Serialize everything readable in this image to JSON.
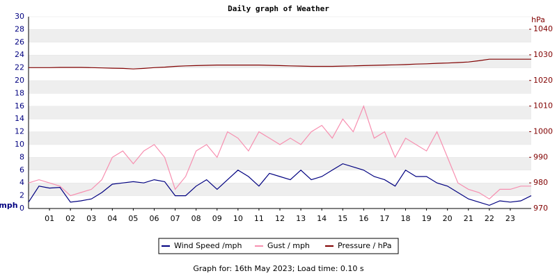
{
  "chart_data": {
    "type": "line",
    "title": "Daily graph of Weather",
    "ylabel": "mph",
    "y2label": "hPa",
    "x": [
      0,
      0.5,
      1,
      1.5,
      2,
      2.5,
      3,
      3.5,
      4,
      4.5,
      5,
      5.5,
      6,
      6.5,
      7,
      7.5,
      8,
      8.5,
      9,
      9.5,
      10,
      10.5,
      11,
      11.5,
      12,
      12.5,
      13,
      13.5,
      14,
      14.5,
      15,
      15.5,
      16,
      16.5,
      17,
      17.5,
      18,
      18.5,
      19,
      19.5,
      20,
      20.5,
      21,
      21.5,
      22,
      22.5,
      23,
      23.5,
      24
    ],
    "xlim": [
      0,
      24
    ],
    "xticks": [
      {
        "value": 1,
        "label": "01"
      },
      {
        "value": 2,
        "label": "02"
      },
      {
        "value": 3,
        "label": "03"
      },
      {
        "value": 4,
        "label": "04"
      },
      {
        "value": 5,
        "label": "05"
      },
      {
        "value": 6,
        "label": "06"
      },
      {
        "value": 7,
        "label": "07"
      },
      {
        "value": 8,
        "label": "08"
      },
      {
        "value": 9,
        "label": "09"
      },
      {
        "value": 10,
        "label": "10"
      },
      {
        "value": 11,
        "label": "11"
      },
      {
        "value": 12,
        "label": "12"
      },
      {
        "value": 13,
        "label": "13"
      },
      {
        "value": 14,
        "label": "14"
      },
      {
        "value": 15,
        "label": "15"
      },
      {
        "value": 16,
        "label": "16"
      },
      {
        "value": 17,
        "label": "17"
      },
      {
        "value": 18,
        "label": "18"
      },
      {
        "value": 19,
        "label": "19"
      },
      {
        "value": 20,
        "label": "20"
      },
      {
        "value": 21,
        "label": "21"
      },
      {
        "value": 22,
        "label": "22"
      },
      {
        "value": 23,
        "label": "23"
      }
    ],
    "ylim": [
      0,
      30
    ],
    "yticks": [
      0,
      2,
      4,
      6,
      8,
      10,
      12,
      14,
      16,
      18,
      20,
      22,
      24,
      26,
      28,
      30
    ],
    "y2lim": [
      970,
      1044.9
    ],
    "y2ticks": [
      970,
      980,
      990,
      1000,
      1010,
      1020,
      1030,
      1040
    ],
    "grid": true,
    "series": [
      {
        "name": "Wind Speed /mph",
        "color": "#000080",
        "values": [
          1,
          3.5,
          3.2,
          3.3,
          1.0,
          1.2,
          1.5,
          2.5,
          3.8,
          4.0,
          4.2,
          4.0,
          4.5,
          4.2,
          2.0,
          2.0,
          3.5,
          4.5,
          3.0,
          4.5,
          6.0,
          5.0,
          3.5,
          5.5,
          5.0,
          4.5,
          6.0,
          4.5,
          5.0,
          6.0,
          7.0,
          6.5,
          6.0,
          5.0,
          4.5,
          3.5,
          6.0,
          5.0,
          5.0,
          4.0,
          3.5,
          2.5,
          1.5,
          1.0,
          0.5,
          1.2,
          1.0,
          1.2,
          2.0
        ]
      },
      {
        "name": "Gust / mph",
        "color": "#f78fb0",
        "values": [
          4,
          4.5,
          4,
          3.5,
          2,
          2.5,
          3,
          4.5,
          8,
          9,
          7,
          9,
          10,
          8,
          3,
          5,
          9,
          10,
          8,
          12,
          11,
          9,
          12,
          11,
          10,
          11,
          10,
          12,
          13,
          11,
          14,
          12,
          16,
          11,
          12,
          8,
          11,
          10,
          9,
          12,
          8,
          4,
          3,
          2.5,
          1.5,
          3,
          3,
          3.5,
          3.5
        ]
      },
      {
        "name": "Pressure / hPa",
        "color": "#800000",
        "axis": "y2",
        "values": [
          1025,
          1025,
          1025,
          1025.1,
          1025.1,
          1025.1,
          1025,
          1024.9,
          1024.8,
          1024.7,
          1024.5,
          1024.7,
          1025,
          1025.2,
          1025.5,
          1025.7,
          1025.8,
          1025.9,
          1026,
          1026,
          1026,
          1026,
          1026,
          1025.9,
          1025.8,
          1025.7,
          1025.6,
          1025.5,
          1025.5,
          1025.5,
          1025.6,
          1025.7,
          1025.8,
          1025.9,
          1026,
          1026.1,
          1026.2,
          1026.4,
          1026.5,
          1026.7,
          1026.8,
          1027,
          1027.2,
          1027.7,
          1028.3,
          1028.3,
          1028.3,
          1028.3,
          1028.3
        ]
      }
    ],
    "footer": "Graph for: 16th May 2023; Load time: 0.10 s"
  }
}
